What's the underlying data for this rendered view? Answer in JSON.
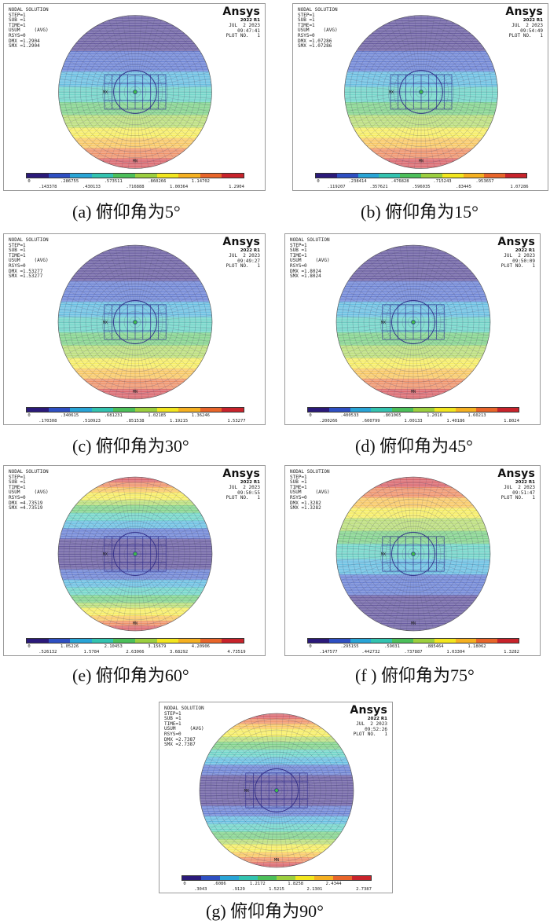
{
  "figure": {
    "header_common": [
      "NODAL SOLUTION",
      "STEP=1",
      "SUB =1",
      "TIME=1",
      "USUM     (AVG)",
      "RSYS=0"
    ],
    "logo": {
      "brand": "Ansys",
      "release": "2022 R1"
    },
    "date": "JUL  2 2023",
    "plot_no": "PLOT NO.   1",
    "node_marker_mx": "MX",
    "node_marker_mn": "MN",
    "colorbar_colors": [
      "#2b1a7a",
      "#2e4fc2",
      "#29a4d6",
      "#33c3b0",
      "#4cbf5a",
      "#9ccf3f",
      "#f2e61f",
      "#f5b021",
      "#e8652a",
      "#c8232b"
    ],
    "panels": [
      {
        "id": "a",
        "time": "09:47:41",
        "dmx": "DMX =1.2904",
        "smx": "SMX =1.2904",
        "ticks_top": [
          "0",
          ".286755",
          ".573511",
          ".860266",
          "1.14702"
        ],
        "ticks_bottom": [
          ".143378",
          ".430133",
          ".716888",
          "1.00364",
          "1.2904"
        ],
        "caption": "(a)  俯仰角为5°",
        "pattern": "bottom"
      },
      {
        "id": "b",
        "time": "09:54:49",
        "dmx": "DMX =1.07286",
        "smx": "SMX =1.07286",
        "ticks_top": [
          "0",
          ".238414",
          ".476828",
          ".715243",
          ".953657"
        ],
        "ticks_bottom": [
          ".119207",
          ".357621",
          ".596035",
          ".83445",
          "1.07286"
        ],
        "caption": "(b)  俯仰角为15°",
        "pattern": "bottom"
      },
      {
        "id": "c",
        "time": "09:49:27",
        "dmx": "DMX =1.53277",
        "smx": "SMX =1.53277",
        "ticks_top": [
          "0",
          ".340615",
          ".681231",
          "1.02185",
          "1.36246"
        ],
        "ticks_bottom": [
          ".170308",
          ".510923",
          ".851538",
          "1.19215",
          "1.53277"
        ],
        "caption": "(c)  俯仰角为30°",
        "pattern": "bottom"
      },
      {
        "id": "d",
        "time": "09:50:09",
        "dmx": "DMX =1.8024",
        "smx": "SMX =1.8024",
        "ticks_top": [
          "0",
          ".400533",
          ".801065",
          "1.2016",
          "1.60213"
        ],
        "ticks_bottom": [
          ".200266",
          ".600799",
          "1.00133",
          "1.40186",
          "1.8024"
        ],
        "caption": "(d)  俯仰角为45°",
        "pattern": "bottom"
      },
      {
        "id": "e",
        "time": "09:50:55",
        "dmx": "DMX =4.73519",
        "smx": "SMX =4.73519",
        "ticks_top": [
          "0",
          "1.05226",
          "2.10453",
          "3.15679",
          "4.20906"
        ],
        "ticks_bottom": [
          ".526132",
          "1.5784",
          "2.63066",
          "3.68292",
          "4.73519"
        ],
        "caption": "(e)  俯仰角为60°",
        "pattern": "topbottom"
      },
      {
        "id": "f",
        "time": "09:51:47",
        "dmx": "DMX =1.3282",
        "smx": "SMX =1.3282",
        "ticks_top": [
          "0",
          ".295155",
          ".59031",
          ".885464",
          "1.18062"
        ],
        "ticks_bottom": [
          ".147577",
          ".442732",
          ".737887",
          "1.03304",
          "1.3282"
        ],
        "caption": "(f )  俯仰角为75°",
        "pattern": "top"
      },
      {
        "id": "g",
        "time": "09:52:26",
        "dmx": "DMX =2.7387",
        "smx": "SMX =2.7387",
        "ticks_top": [
          "0",
          ".6086",
          "1.2172",
          "1.8258",
          "2.4344"
        ],
        "ticks_bottom": [
          ".3043",
          ".9129",
          "1.5215",
          "2.1301",
          "2.7387"
        ],
        "caption": "(g)  俯仰角为90°",
        "pattern": "topbottom"
      }
    ]
  }
}
